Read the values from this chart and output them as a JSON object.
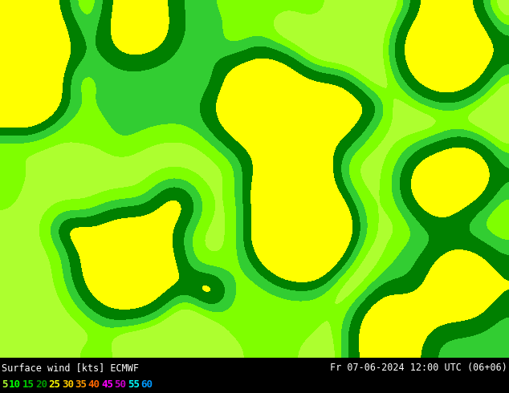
{
  "title_left": "Surface wind [kts] ECMWF",
  "title_right": "Fr 07-06-2024 12:00 UTC (06+06)",
  "colorbar_values": [
    5,
    10,
    15,
    20,
    25,
    30,
    35,
    40,
    45,
    50,
    55,
    60
  ],
  "colorbar_colors": [
    "#adff2f",
    "#00ff00",
    "#00e600",
    "#00b300",
    "#ffff00",
    "#ffcc00",
    "#ff9900",
    "#ff6600",
    "#ff00ff",
    "#cc00cc",
    "#00ffff",
    "#0099ff"
  ],
  "colorbar_text_colors": [
    "#adff2f",
    "#00ff00",
    "#00cc00",
    "#009900",
    "#ffff00",
    "#ffcc00",
    "#ff9900",
    "#ff6600",
    "#ff00ff",
    "#cc00cc",
    "#00ffff",
    "#0099ff"
  ],
  "bg_color": "#000000",
  "text_color": "#000000",
  "map_bg": "#ffffff",
  "figsize": [
    6.34,
    4.9
  ],
  "dpi": 100
}
